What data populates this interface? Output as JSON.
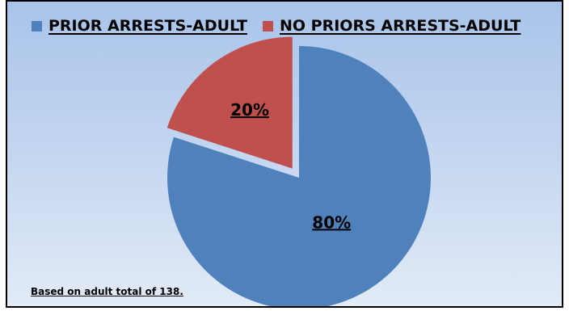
{
  "chart_data": {
    "type": "pie",
    "categories": [
      "PRIOR ARRESTS-ADULT",
      "NO PRIORS ARRESTS-ADULT"
    ],
    "values": [
      80,
      20
    ],
    "data_labels": [
      "80%",
      "20%"
    ],
    "colors": [
      "#4f81bd",
      "#c0504d"
    ],
    "legend": "top",
    "footnote": "Based on adult total of 138."
  }
}
